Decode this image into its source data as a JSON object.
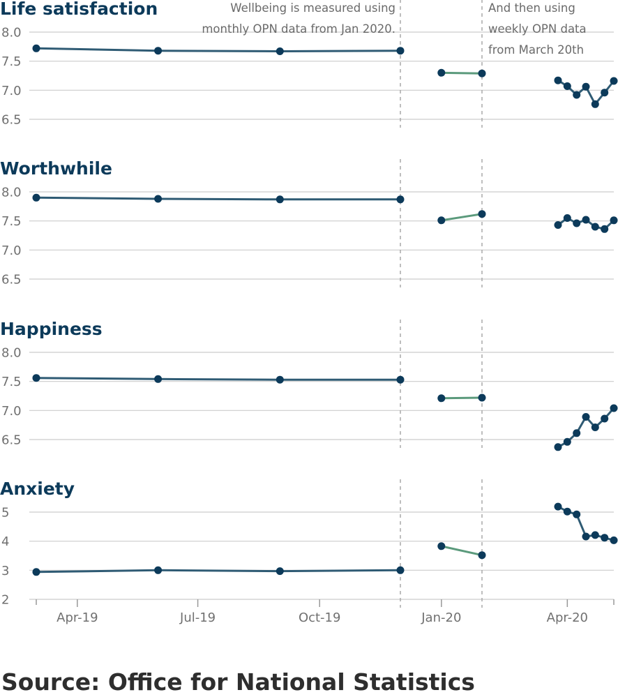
{
  "source_text": "Source: Office for National Statistics",
  "annotations": [
    {
      "lines": [
        "Wellbeing is measured using",
        "monthly OPN data from Jan 2020."
      ]
    },
    {
      "lines": [
        "And then using",
        "weekly OPN data",
        "from March 20th"
      ]
    }
  ],
  "colors": {
    "title": "#0c3a5a",
    "marker": "#0c3a5a",
    "series_quarterly": "#2f5b74",
    "series_monthly": "#5b9a7c",
    "series_weekly": "#2f5b74",
    "grid": "#cccccc",
    "divider": "#a8a8a8"
  },
  "x_axis": {
    "ticks": [
      "Apr-19",
      "Jul-19",
      "Oct-19",
      "Jan-20",
      "Apr-20"
    ]
  },
  "chart_data": [
    {
      "type": "line",
      "title": "Life satisfaction",
      "yticks": [
        "8.0",
        "7.5",
        "7.0",
        "6.5"
      ],
      "ylim": [
        6.5,
        8.0
      ],
      "series": [
        {
          "x": [
            "2019-03-01",
            "2019-06-01",
            "2019-09-01",
            "2019-12-01"
          ],
          "values": [
            7.72,
            7.68,
            7.67,
            7.68
          ]
        },
        {
          "x": [
            "2020-01-01",
            "2020-02-01"
          ],
          "values": [
            7.3,
            7.29
          ]
        },
        {
          "x": [
            "2020-03-25",
            "2020-04-01",
            "2020-04-08",
            "2020-04-15",
            "2020-04-22",
            "2020-04-29",
            "2020-05-06"
          ],
          "values": [
            7.17,
            7.07,
            6.92,
            7.06,
            6.76,
            6.96,
            7.16
          ]
        }
      ]
    },
    {
      "type": "line",
      "title": "Worthwhile",
      "yticks": [
        "8.0",
        "7.5",
        "7.0",
        "6.5"
      ],
      "ylim": [
        6.5,
        8.0
      ],
      "series": [
        {
          "x": [
            "2019-03-01",
            "2019-06-01",
            "2019-09-01",
            "2019-12-01"
          ],
          "values": [
            7.9,
            7.88,
            7.87,
            7.87
          ]
        },
        {
          "x": [
            "2020-01-01",
            "2020-02-01"
          ],
          "values": [
            7.51,
            7.62
          ]
        },
        {
          "x": [
            "2020-03-25",
            "2020-04-01",
            "2020-04-08",
            "2020-04-15",
            "2020-04-22",
            "2020-04-29",
            "2020-05-06"
          ],
          "values": [
            7.43,
            7.55,
            7.46,
            7.52,
            7.4,
            7.36,
            7.51
          ]
        }
      ]
    },
    {
      "type": "line",
      "title": "Happiness",
      "yticks": [
        "8.0",
        "7.5",
        "7.0",
        "6.5"
      ],
      "ylim": [
        6.5,
        8.0
      ],
      "series": [
        {
          "x": [
            "2019-03-01",
            "2019-06-01",
            "2019-09-01",
            "2019-12-01"
          ],
          "values": [
            7.56,
            7.54,
            7.53,
            7.53
          ]
        },
        {
          "x": [
            "2020-01-01",
            "2020-02-01"
          ],
          "values": [
            7.21,
            7.22
          ]
        },
        {
          "x": [
            "2020-03-25",
            "2020-04-01",
            "2020-04-08",
            "2020-04-15",
            "2020-04-22",
            "2020-04-29",
            "2020-05-06"
          ],
          "values": [
            6.37,
            6.46,
            6.61,
            6.89,
            6.71,
            6.86,
            7.04
          ]
        }
      ]
    },
    {
      "type": "line",
      "title": "Anxiety",
      "yticks": [
        "5",
        "4",
        "3",
        "2"
      ],
      "ylim": [
        2,
        5
      ],
      "series": [
        {
          "x": [
            "2019-03-01",
            "2019-06-01",
            "2019-09-01",
            "2019-12-01"
          ],
          "values": [
            2.94,
            3.0,
            2.97,
            3.0
          ]
        },
        {
          "x": [
            "2020-01-01",
            "2020-02-01"
          ],
          "values": [
            3.83,
            3.52
          ]
        },
        {
          "x": [
            "2020-03-25",
            "2020-04-01",
            "2020-04-08",
            "2020-04-15",
            "2020-04-22",
            "2020-04-29",
            "2020-05-06"
          ],
          "values": [
            5.19,
            5.02,
            4.92,
            4.16,
            4.21,
            4.12,
            4.03
          ]
        }
      ]
    }
  ]
}
